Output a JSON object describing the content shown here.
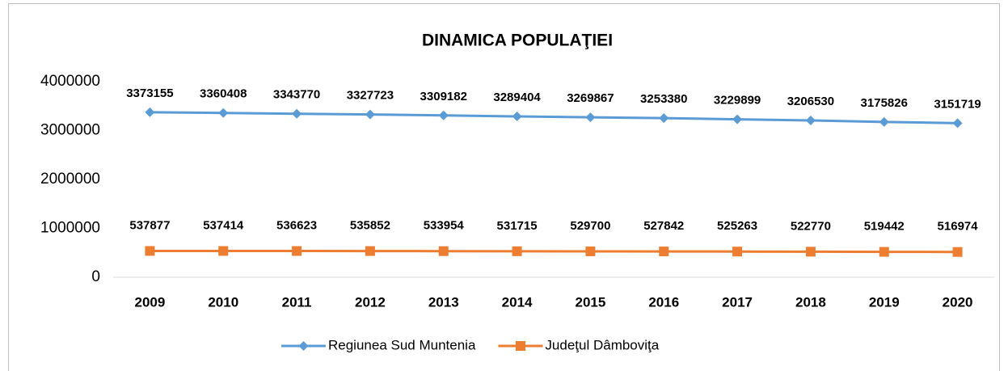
{
  "chart_data": {
    "type": "line",
    "title": "DINAMICA POPULAŢIEI",
    "categories": [
      "2009",
      "2010",
      "2011",
      "2012",
      "2013",
      "2014",
      "2015",
      "2016",
      "2017",
      "2018",
      "2019",
      "2020"
    ],
    "series": [
      {
        "name": "Regiunea Sud Muntenia",
        "color": "#5b9bd5",
        "marker": "diamond",
        "values": [
          3373155,
          3360408,
          3343770,
          3327723,
          3309182,
          3289404,
          3269867,
          3253380,
          3229899,
          3206530,
          3175826,
          3151719
        ]
      },
      {
        "name": "Judeţul Dâmboviţa",
        "color": "#ed7d31",
        "marker": "square",
        "values": [
          537877,
          537414,
          536623,
          535852,
          533954,
          531715,
          529700,
          527842,
          525263,
          522770,
          519442,
          516974
        ]
      }
    ],
    "ylim": [
      0,
      4000000
    ],
    "yticks": [
      0,
      1000000,
      2000000,
      3000000,
      4000000
    ],
    "grid": false,
    "legend": "bottom"
  }
}
